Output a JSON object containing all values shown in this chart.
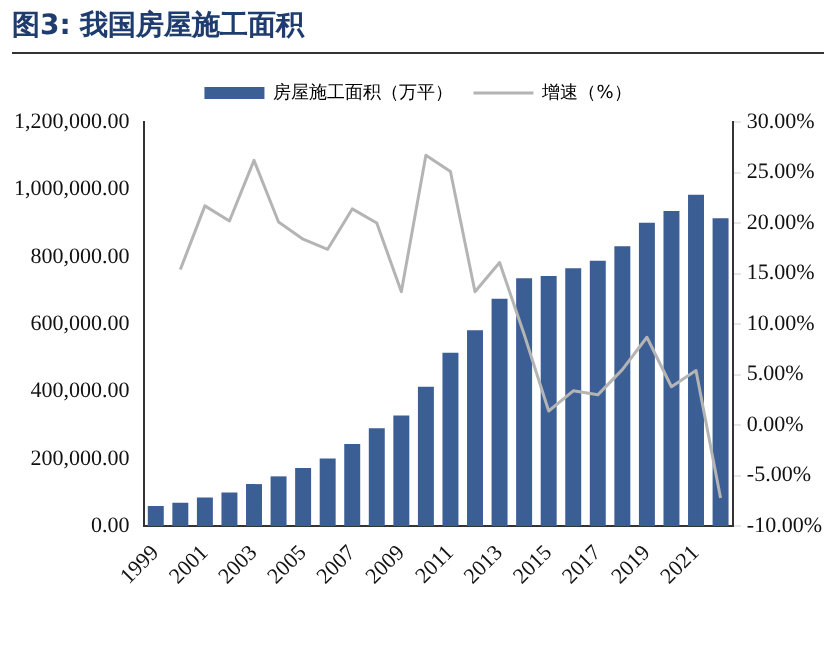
{
  "chart_data": {
    "type": "bar",
    "title": "图3: 我国房屋施工面积",
    "categories": [
      "1999",
      null,
      "2001",
      null,
      "2003",
      null,
      "2005",
      null,
      "2007",
      null,
      "2009",
      null,
      "2011",
      null,
      "2013",
      null,
      "2015",
      null,
      "2017",
      null,
      "2019",
      null,
      "2021",
      null
    ],
    "series": [
      {
        "name": "房屋施工面积（万平）",
        "color": "#3b5e94",
        "values": [
          60000,
          70000,
          85000,
          100000,
          125000,
          148000,
          173000,
          201000,
          244000,
          291000,
          329000,
          414000,
          515000,
          582000,
          675000,
          736000,
          743000,
          766000,
          788000,
          831000,
          901000,
          936000,
          984000,
          914000
        ]
      },
      {
        "name": "增速（%）",
        "type": "line",
        "axis": "y2",
        "color": "#b4b4b4",
        "values": [
          null,
          15.4,
          21.7,
          20.2,
          26.2,
          20.1,
          18.4,
          17.4,
          21.4,
          20.0,
          13.2,
          26.7,
          25.1,
          13.2,
          16.1,
          9.0,
          1.4,
          3.4,
          3.0,
          5.5,
          8.7,
          3.8,
          5.4,
          -7.2
        ]
      }
    ],
    "ylim": [
      0,
      1200000
    ],
    "yticks": [
      {
        "value": 0,
        "label": "0.00"
      },
      {
        "value": 200000,
        "label": "200,000.00"
      },
      {
        "value": 400000,
        "label": "400,000.00"
      },
      {
        "value": 600000,
        "label": "600,000.00"
      },
      {
        "value": 800000,
        "label": "800,000.00"
      },
      {
        "value": 1000000,
        "label": "1,000,000.00"
      },
      {
        "value": 1200000,
        "label": "1,200,000.00"
      }
    ],
    "y2lim": [
      -10,
      30
    ],
    "y2ticks": [
      {
        "value": -10,
        "label": "-10.00%"
      },
      {
        "value": -5,
        "label": "-5.00%"
      },
      {
        "value": 0,
        "label": "0.00%"
      },
      {
        "value": 5,
        "label": "5.00%"
      },
      {
        "value": 10,
        "label": "10.00%"
      },
      {
        "value": 15,
        "label": "15.00%"
      },
      {
        "value": 20,
        "label": "20.00%"
      },
      {
        "value": 25,
        "label": "25.00%"
      },
      {
        "value": 30,
        "label": "30.00%"
      }
    ],
    "grid": false,
    "legend": "top",
    "marker": "none"
  }
}
